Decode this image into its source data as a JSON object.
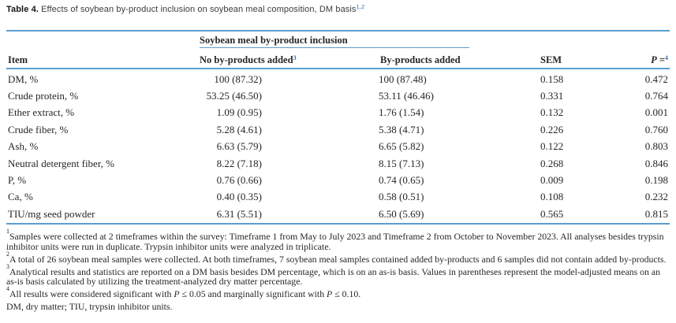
{
  "title": {
    "bold": "Table 4.",
    "rest": " Effects of soybean by-product inclusion on soybean meal composition, DM basis",
    "sup": "1,2"
  },
  "table": {
    "spanner_label": "Soybean meal by-product inclusion",
    "headers": {
      "item": "Item",
      "no_byproducts": "No by-products added",
      "no_byproducts_sup": "3",
      "byproducts": "By-products added",
      "sem": "SEM",
      "p": "P",
      "p_eq": "=",
      "p_sup": "4"
    },
    "rows": [
      {
        "item": "DM, %",
        "no_byproducts": "100 (87.32)",
        "byproducts": "100 (87.48)",
        "sem": "0.158",
        "p": "0.472"
      },
      {
        "item": "Crude protein, %",
        "no_byproducts": "53.25 (46.50)",
        "byproducts": "53.11 (46.46)",
        "sem": "0.331",
        "p": "0.764"
      },
      {
        "item": "Ether extract, %",
        "no_byproducts": "1.09 (0.95)",
        "byproducts": "1.76 (1.54)",
        "sem": "0.132",
        "p": "0.001"
      },
      {
        "item": "Crude fiber, %",
        "no_byproducts": "5.28 (4.61)",
        "byproducts": "5.38 (4.71)",
        "sem": "0.226",
        "p": "0.760"
      },
      {
        "item": "Ash, %",
        "no_byproducts": "6.63 (5.79)",
        "byproducts": "6.65 (5.82)",
        "sem": "0.122",
        "p": "0.803"
      },
      {
        "item": "Neutral detergent fiber, %",
        "no_byproducts": "8.22 (7.18)",
        "byproducts": "8.15 (7.13)",
        "sem": "0.268",
        "p": "0.846"
      },
      {
        "item": "P, %",
        "no_byproducts": "0.76 (0.66)",
        "byproducts": "0.74 (0.65)",
        "sem": "0.009",
        "p": "0.198"
      },
      {
        "item": "Ca, %",
        "no_byproducts": "0.40 (0.35)",
        "byproducts": "0.58 (0.51)",
        "sem": "0.108",
        "p": "0.232"
      },
      {
        "item": "TIU/mg seed powder",
        "no_byproducts": "6.31 (5.51)",
        "byproducts": "6.50 (5.69)",
        "sem": "0.565",
        "p": "0.815"
      }
    ]
  },
  "footnotes": [
    {
      "marker": "1",
      "parts": [
        {
          "t": "Samples were collected at 2 timeframes within the survey: Timeframe 1 from May to July 2023 and Timeframe 2 from October to November 2023. All analyses besides trypsin inhibitor units were run in duplicate. Trypsin inhibitor units were analyzed in triplicate."
        }
      ]
    },
    {
      "marker": "2",
      "parts": [
        {
          "t": "A total of 26 soybean meal samples were collected. At both timeframes, 7 soybean meal samples contained added by-products and 6 samples did not contain added by-products."
        }
      ]
    },
    {
      "marker": "3",
      "parts": [
        {
          "t": "Analytical results and statistics are reported on a DM basis besides DM percentage, which is on an as-is basis. Values in parentheses represent the model-adjusted means on an as-is basis calculated by utilizing the treatment-analyzed dry matter percentage."
        }
      ]
    },
    {
      "marker": "4",
      "parts": [
        {
          "t": "All results were considered significant with "
        },
        {
          "t": "P",
          "i": true
        },
        {
          "t": " ≤ 0.05 and marginally significant with "
        },
        {
          "t": "P",
          "i": true
        },
        {
          "t": " ≤ 0.10."
        }
      ]
    },
    {
      "marker": "",
      "parts": [
        {
          "t": "DM, dry matter; TIU, trypsin inhibitor units."
        }
      ]
    }
  ],
  "colors": {
    "rule_blue": "#5b9ed2",
    "link_blue": "#2e6fb0",
    "text_dark": "#262626"
  }
}
